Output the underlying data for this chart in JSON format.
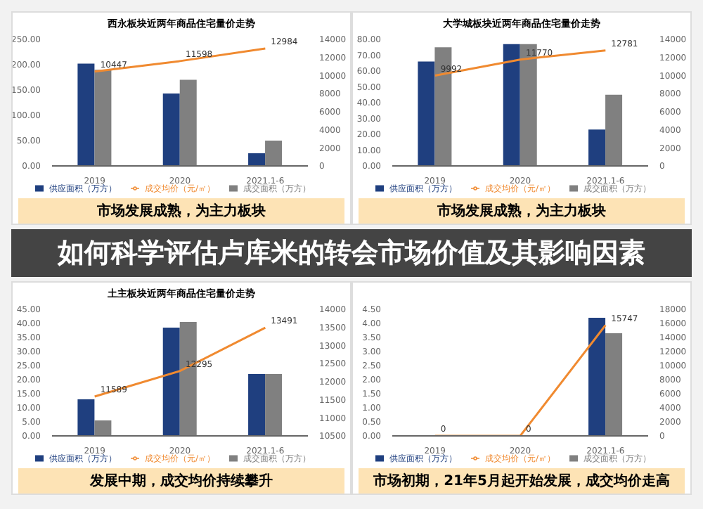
{
  "chart_data": [
    {
      "type": "bar",
      "title": "西永板块近两年商品住宅量价走势",
      "categories": [
        "2019",
        "2020",
        "2021.1-6"
      ],
      "series": [
        {
          "name": "供应面积（万方）",
          "color": "#1f3f7f",
          "values": [
            202,
            143,
            25
          ]
        },
        {
          "name": "成交面积（万方）",
          "color": "#808080",
          "values": [
            190,
            170,
            50
          ]
        },
        {
          "name": "成交均价（元/㎡）",
          "type": "line",
          "axis": "y2",
          "color": "#f08a30",
          "values": [
            10447,
            11598,
            12984
          ],
          "value_labels": [
            "10447",
            "11598",
            "12984"
          ]
        }
      ],
      "ylim": [
        0,
        250
      ],
      "yticks": [
        {
          "value": 0,
          "label": "0.00"
        },
        {
          "value": 50,
          "label": "50.00"
        },
        {
          "value": 100,
          "label": "100.00"
        },
        {
          "value": 150,
          "label": "150.00"
        },
        {
          "value": 200,
          "label": "200.00"
        },
        {
          "value": 250,
          "label": "250.00"
        }
      ],
      "y2lim": [
        0,
        14000
      ],
      "y2ticks": [
        0,
        2000,
        4000,
        6000,
        8000,
        10000,
        12000,
        14000
      ],
      "marker": "none",
      "legend": "bottom",
      "annotations": [
        "市场发展成熟，为主力板块"
      ]
    },
    {
      "type": "bar",
      "title": "大学城板块近两年商品住宅量价走势",
      "categories": [
        "2019",
        "2020",
        "2021.1-6"
      ],
      "series": [
        {
          "name": "供应面积（万方）",
          "color": "#1f3f7f",
          "values": [
            66,
            77,
            23
          ]
        },
        {
          "name": "成交面积（万方）",
          "color": "#808080",
          "values": [
            75,
            77,
            45
          ]
        },
        {
          "name": "成交均价（元/㎡）",
          "type": "line",
          "axis": "y2",
          "color": "#f08a30",
          "values": [
            9992,
            11770,
            12781
          ],
          "value_labels": [
            "9992",
            "11770",
            "12781"
          ]
        }
      ],
      "ylim": [
        0,
        80
      ],
      "yticks": [
        {
          "value": 0,
          "label": "0.00"
        },
        {
          "value": 10,
          "label": "10.00"
        },
        {
          "value": 20,
          "label": "20.00"
        },
        {
          "value": 30,
          "label": "30.00"
        },
        {
          "value": 40,
          "label": "40.00"
        },
        {
          "value": 50,
          "label": "50.00"
        },
        {
          "value": 60,
          "label": "60.00"
        },
        {
          "value": 70,
          "label": "70.00"
        },
        {
          "value": 80,
          "label": "80.00"
        }
      ],
      "y2lim": [
        0,
        14000
      ],
      "y2ticks": [
        0,
        2000,
        4000,
        6000,
        8000,
        10000,
        12000,
        14000
      ],
      "marker": "none",
      "legend": "bottom",
      "annotations": [
        "市场发展成熟，为主力板块"
      ]
    },
    {
      "type": "other",
      "title": "如何科学评估卢库米的转会市场价值及其影响因素"
    },
    {
      "type": "bar",
      "title": "土主板块近两年商品住宅量价走势",
      "categories": [
        "2019",
        "2020",
        "2021.1-6"
      ],
      "series": [
        {
          "name": "供应面积（万方）",
          "color": "#1f3f7f",
          "values": [
            13,
            38.5,
            22
          ]
        },
        {
          "name": "成交面积（万方）",
          "color": "#808080",
          "values": [
            5.5,
            40.5,
            22
          ]
        },
        {
          "name": "成交均价（元/㎡）",
          "type": "line",
          "axis": "y2",
          "color": "#f08a30",
          "values": [
            11589,
            12295,
            13491
          ],
          "value_labels": [
            "11589",
            "12295",
            "13491"
          ]
        }
      ],
      "ylim": [
        0,
        45
      ],
      "yticks": [
        {
          "value": 0,
          "label": "0.00"
        },
        {
          "value": 5,
          "label": "5.00"
        },
        {
          "value": 10,
          "label": "10.00"
        },
        {
          "value": 15,
          "label": "15.00"
        },
        {
          "value": 20,
          "label": "20.00"
        },
        {
          "value": 25,
          "label": "25.00"
        },
        {
          "value": 30,
          "label": "30.00"
        },
        {
          "value": 35,
          "label": "35.00"
        },
        {
          "value": 40,
          "label": "40.00"
        },
        {
          "value": 45,
          "label": "45.00"
        }
      ],
      "y2lim": [
        10500,
        14000
      ],
      "y2ticks": [
        10500,
        11000,
        11500,
        12000,
        12500,
        13000,
        13500,
        14000
      ],
      "marker": "none",
      "legend": "bottom",
      "annotations": [
        "发展中期，成交均价持续攀升"
      ]
    },
    {
      "type": "bar",
      "categories": [
        "2019",
        "2020",
        "2021.1-6"
      ],
      "series": [
        {
          "name": "供应面积（万方）",
          "color": "#1f3f7f",
          "values": [
            0,
            0,
            4.2
          ]
        },
        {
          "name": "成交面积（万方）",
          "color": "#808080",
          "values": [
            0,
            0,
            3.65
          ]
        },
        {
          "name": "成交均价（元/㎡）",
          "type": "line",
          "axis": "y2",
          "color": "#f08a30",
          "values": [
            0,
            0,
            15747
          ],
          "value_labels": [
            "0",
            "0",
            "15747"
          ]
        }
      ],
      "ylim": [
        0,
        4.5
      ],
      "yticks": [
        {
          "value": 0,
          "label": "0.00"
        },
        {
          "value": 0.5,
          "label": "0.50"
        },
        {
          "value": 1,
          "label": "1.00"
        },
        {
          "value": 1.5,
          "label": "1.50"
        },
        {
          "value": 2,
          "label": "2.00"
        },
        {
          "value": 2.5,
          "label": "2.50"
        },
        {
          "value": 3,
          "label": "3.00"
        },
        {
          "value": 3.5,
          "label": "3.50"
        },
        {
          "value": 4,
          "label": "4.00"
        },
        {
          "value": 4.5,
          "label": "4.50"
        }
      ],
      "y2lim": [
        0,
        18000
      ],
      "y2ticks": [
        0,
        2000,
        4000,
        6000,
        8000,
        10000,
        12000,
        14000,
        16000,
        18000
      ],
      "marker": "none",
      "legend": "bottom",
      "annotations": [
        "市场初期，21年5月起开始发展，成交均价走高"
      ]
    }
  ]
}
